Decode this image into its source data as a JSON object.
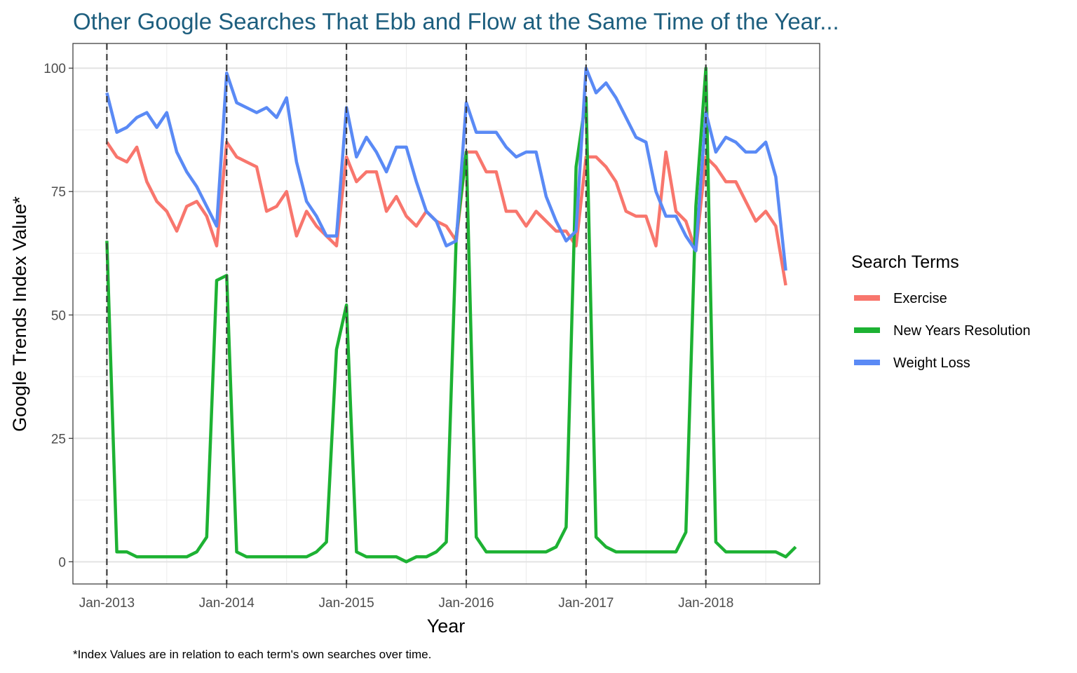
{
  "chart_data": {
    "type": "line",
    "title": "Other Google Searches That Ebb and Flow at the Same Time of the Year...",
    "xlabel": "Year",
    "ylabel": "Google Trends Index Value*",
    "caption": "*Index Values are in relation to each term's own searches over time.",
    "legend_title": "Search Terms",
    "legend_position": "right",
    "grid": true,
    "ylim": [
      -4.5,
      105
    ],
    "y_ticks": [
      0,
      25,
      50,
      75,
      100
    ],
    "x_tick_labels": [
      "Jan-2013",
      "Jan-2014",
      "Jan-2015",
      "Jan-2016",
      "Jan-2017",
      "Jan-2018"
    ],
    "x_start": "Jan-2013",
    "x_months_span": [
      -3.4,
      71.4
    ],
    "reference_lines": [
      "Jan-2013",
      "Jan-2014",
      "Jan-2015",
      "Jan-2016",
      "Jan-2017",
      "Jan-2018"
    ],
    "series": [
      {
        "name": "Exercise",
        "color": "#f8766d",
        "values": [
          85,
          82,
          81,
          84,
          77,
          73,
          71,
          67,
          72,
          73,
          70,
          64,
          85,
          82,
          81,
          80,
          71,
          72,
          75,
          66,
          71,
          68,
          66,
          64,
          82,
          77,
          79,
          79,
          71,
          74,
          70,
          68,
          71,
          69,
          68,
          65,
          83,
          83,
          79,
          79,
          71,
          71,
          68,
          71,
          69,
          67,
          67,
          64,
          82,
          82,
          80,
          77,
          71,
          70,
          70,
          64,
          83,
          71,
          69,
          63,
          82,
          80,
          77,
          77,
          73,
          69,
          71,
          68,
          56
        ]
      },
      {
        "name": "New Years Resolution",
        "color": "#1db233",
        "values": [
          65,
          2,
          2,
          1,
          1,
          1,
          1,
          1,
          1,
          2,
          5,
          57,
          58,
          2,
          1,
          1,
          1,
          1,
          1,
          1,
          1,
          2,
          4,
          43,
          52,
          2,
          1,
          1,
          1,
          1,
          0,
          1,
          1,
          2,
          4,
          66,
          83,
          5,
          2,
          2,
          2,
          2,
          2,
          2,
          2,
          3,
          7,
          80,
          94,
          5,
          3,
          2,
          2,
          2,
          2,
          2,
          2,
          2,
          6,
          72,
          100,
          4,
          2,
          2,
          2,
          2,
          2,
          2,
          1,
          3
        ]
      },
      {
        "name": "Weight Loss",
        "color": "#5a8af5",
        "values": [
          95,
          87,
          88,
          90,
          91,
          88,
          91,
          83,
          79,
          76,
          72,
          68,
          99,
          93,
          92,
          91,
          92,
          90,
          94,
          81,
          73,
          70,
          66,
          66,
          92,
          82,
          86,
          83,
          79,
          84,
          84,
          77,
          71,
          69,
          64,
          65,
          93,
          87,
          87,
          87,
          84,
          82,
          83,
          83,
          74,
          69,
          65,
          67,
          100,
          95,
          97,
          94,
          90,
          86,
          85,
          75,
          70,
          70,
          66,
          63,
          91,
          83,
          86,
          85,
          83,
          83,
          85,
          78,
          59
        ]
      }
    ]
  }
}
